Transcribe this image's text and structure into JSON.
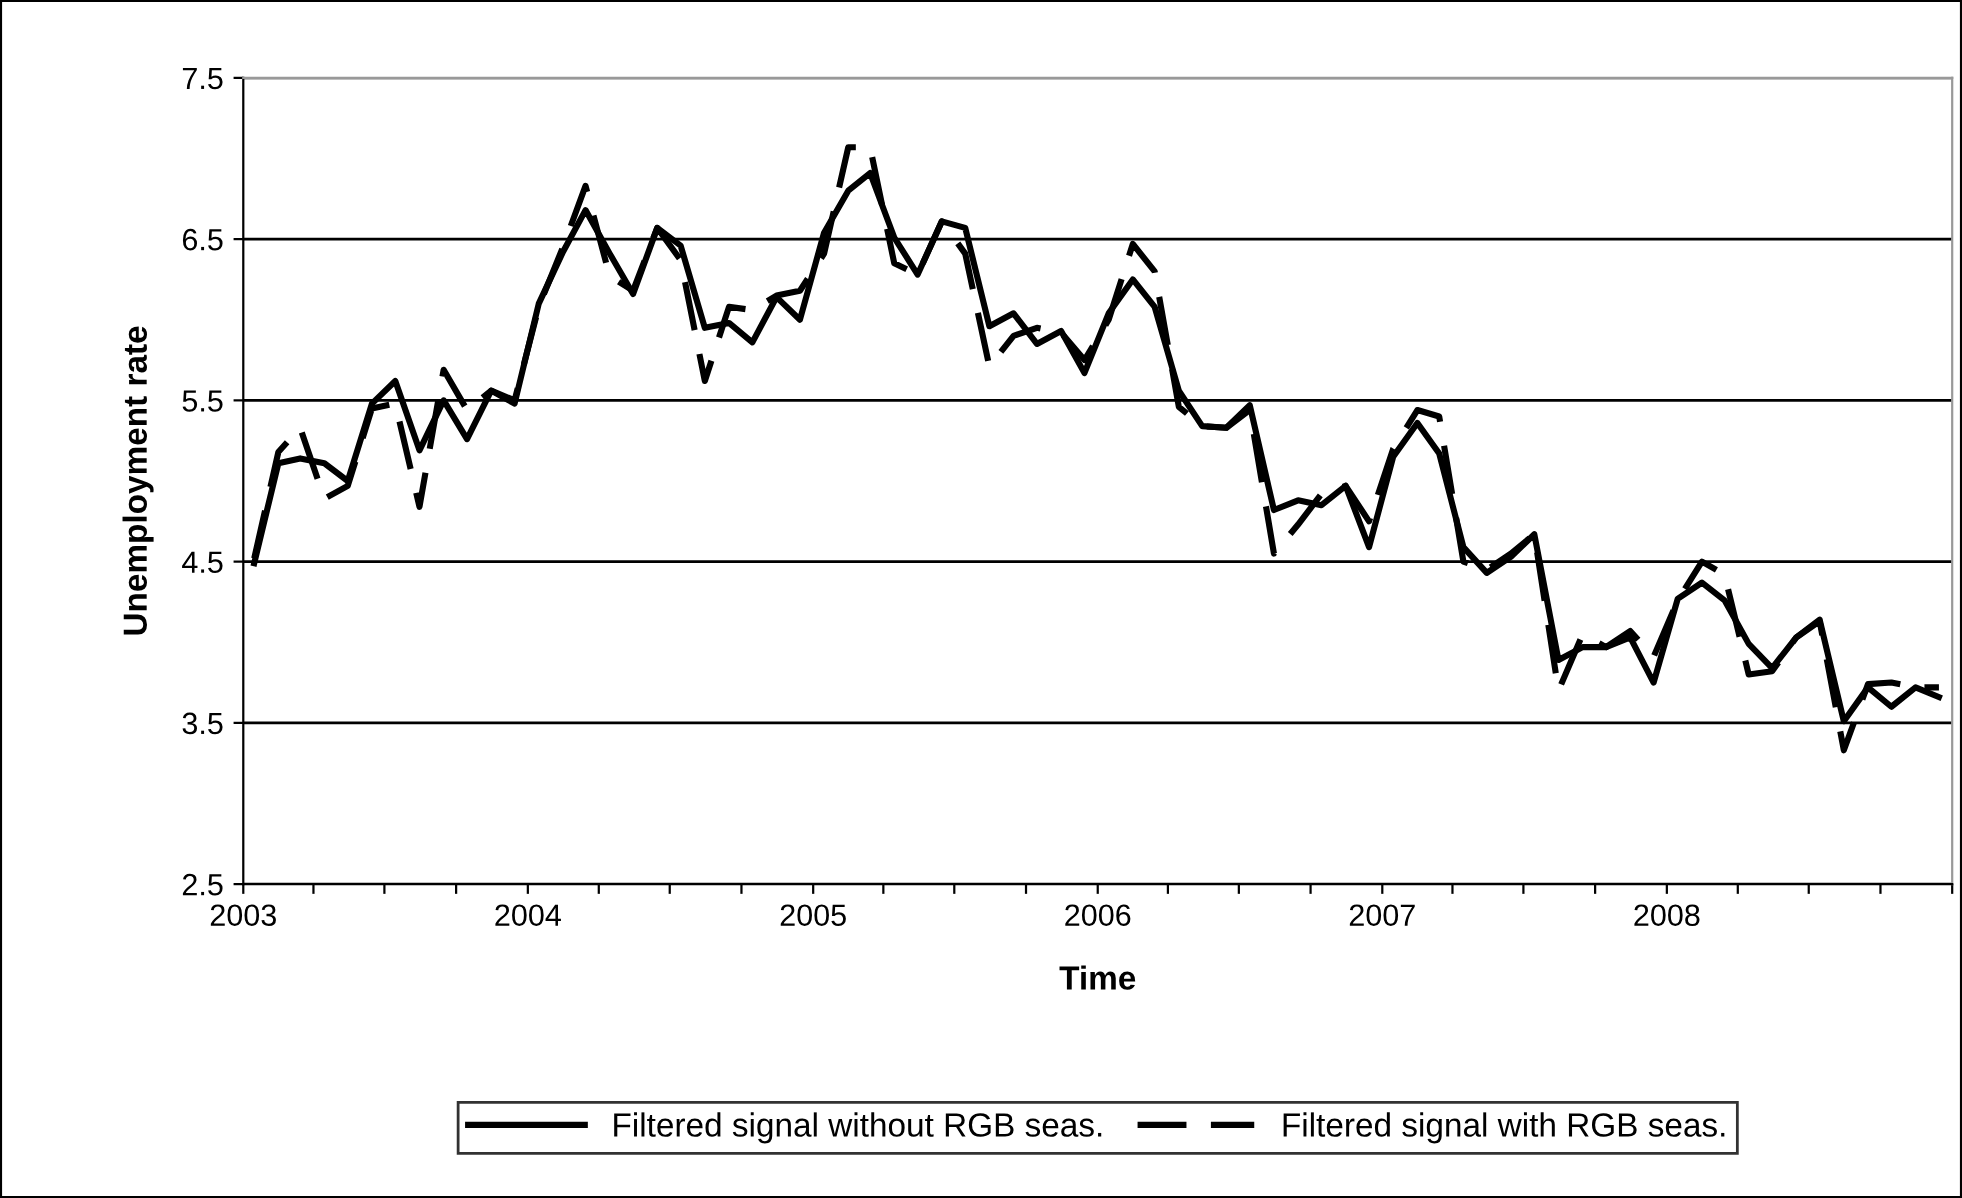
{
  "chart_data": {
    "type": "line",
    "xlabel": "Time",
    "ylabel": "Unemployment rate",
    "x": [
      "2003-01-15",
      "2003-02-15",
      "2003-03-15",
      "2003-04-15",
      "2003-05-15",
      "2003-06-15",
      "2003-07-15",
      "2003-08-15",
      "2003-09-15",
      "2003-10-15",
      "2003-11-15",
      "2003-12-15",
      "2004-01-15",
      "2004-02-15",
      "2004-03-15",
      "2004-04-15",
      "2004-05-15",
      "2004-06-15",
      "2004-07-15",
      "2004-08-15",
      "2004-09-15",
      "2004-10-15",
      "2004-11-15",
      "2004-12-15",
      "2005-01-15",
      "2005-02-15",
      "2005-03-15",
      "2005-04-15",
      "2005-05-15",
      "2005-06-15",
      "2005-07-15",
      "2005-08-15",
      "2005-09-15",
      "2005-10-15",
      "2005-11-15",
      "2005-12-15",
      "2006-01-15",
      "2006-02-15",
      "2006-03-15",
      "2006-04-15",
      "2006-05-15",
      "2006-06-15",
      "2006-07-15",
      "2006-08-15",
      "2006-09-15",
      "2006-10-15",
      "2006-11-15",
      "2006-12-15",
      "2007-01-15",
      "2007-02-15",
      "2007-03-15",
      "2007-04-15",
      "2007-05-15",
      "2007-06-15",
      "2007-07-15",
      "2007-08-15",
      "2007-09-15",
      "2007-10-15",
      "2007-11-15",
      "2007-12-15",
      "2008-01-15",
      "2008-02-15",
      "2008-03-15",
      "2008-04-15",
      "2008-05-15",
      "2008-06-15",
      "2008-07-15",
      "2008-08-15",
      "2008-09-15",
      "2008-10-15",
      "2008-11-15",
      "2008-12-15"
    ],
    "series": [
      {
        "name": "Filtered signal without RGB seas.",
        "color": "#000000",
        "line_style": "solid",
        "values": [
          4.49,
          5.11,
          5.14,
          5.11,
          5.0,
          5.48,
          5.62,
          5.19,
          5.5,
          5.26,
          5.56,
          5.48,
          6.1,
          6.42,
          6.68,
          6.41,
          6.16,
          6.57,
          6.46,
          5.95,
          5.98,
          5.86,
          6.14,
          6.0,
          6.54,
          6.8,
          6.91,
          6.51,
          6.28,
          6.61,
          6.57,
          5.96,
          6.04,
          5.85,
          5.93,
          5.67,
          6.04,
          6.25,
          6.08,
          5.56,
          5.34,
          5.33,
          5.47,
          4.82,
          4.88,
          4.85,
          4.97,
          4.59,
          5.15,
          5.36,
          5.17,
          4.59,
          4.43,
          4.53,
          4.67,
          3.89,
          3.97,
          3.97,
          4.03,
          3.75,
          4.27,
          4.37,
          4.26,
          3.99,
          3.84,
          4.03,
          4.14,
          3.51,
          3.72,
          3.6,
          3.72,
          3.66
        ]
      },
      {
        "name": "Filtered signal with RGB seas.",
        "color": "#000000",
        "line_style": "dashed",
        "values": [
          4.52,
          5.18,
          5.33,
          4.89,
          4.97,
          5.45,
          5.48,
          4.84,
          5.69,
          5.44,
          5.56,
          5.5,
          6.08,
          6.45,
          6.83,
          6.27,
          6.18,
          6.57,
          6.37,
          5.62,
          6.08,
          6.06,
          6.15,
          6.18,
          6.41,
          7.07,
          7.07,
          6.35,
          6.28,
          6.61,
          6.41,
          5.71,
          5.9,
          5.95,
          5.92,
          5.75,
          6.0,
          6.47,
          6.3,
          5.46,
          5.34,
          5.33,
          5.44,
          4.55,
          4.73,
          4.92,
          4.97,
          4.75,
          5.2,
          5.44,
          5.4,
          4.5,
          4.45,
          4.55,
          4.67,
          3.7,
          4.05,
          3.97,
          4.07,
          3.91,
          4.26,
          4.5,
          4.42,
          3.8,
          3.82,
          4.03,
          4.13,
          3.33,
          3.74,
          3.75,
          3.72,
          3.72
        ]
      }
    ],
    "xlim": [
      "2003-01-01",
      "2009-01-01"
    ],
    "xticks": [
      {
        "value": "2003-01-01",
        "label": "2003"
      },
      {
        "value": "2003-04-01",
        "label": null
      },
      {
        "value": "2003-07-01",
        "label": null
      },
      {
        "value": "2003-10-01",
        "label": null
      },
      {
        "value": "2004-01-01",
        "label": "2004"
      },
      {
        "value": "2004-04-01",
        "label": null
      },
      {
        "value": "2004-07-01",
        "label": null
      },
      {
        "value": "2004-10-01",
        "label": null
      },
      {
        "value": "2005-01-01",
        "label": "2005"
      },
      {
        "value": "2005-04-01",
        "label": null
      },
      {
        "value": "2005-07-01",
        "label": null
      },
      {
        "value": "2005-10-01",
        "label": null
      },
      {
        "value": "2006-01-01",
        "label": "2006"
      },
      {
        "value": "2006-04-01",
        "label": null
      },
      {
        "value": "2006-07-01",
        "label": null
      },
      {
        "value": "2006-10-01",
        "label": null
      },
      {
        "value": "2007-01-01",
        "label": "2007"
      },
      {
        "value": "2007-04-01",
        "label": null
      },
      {
        "value": "2007-07-01",
        "label": null
      },
      {
        "value": "2007-10-01",
        "label": null
      },
      {
        "value": "2008-01-01",
        "label": "2008"
      },
      {
        "value": "2008-04-01",
        "label": null
      },
      {
        "value": "2008-07-01",
        "label": null
      },
      {
        "value": "2008-10-01",
        "label": null
      },
      {
        "value": "2009-01-01",
        "label": null
      }
    ],
    "ylim": [
      2.5,
      7.5
    ],
    "yticks": [
      2.5,
      3.5,
      4.5,
      5.5,
      6.5,
      7.5
    ],
    "grid": "y",
    "legend": "bottom",
    "marker": "none"
  }
}
